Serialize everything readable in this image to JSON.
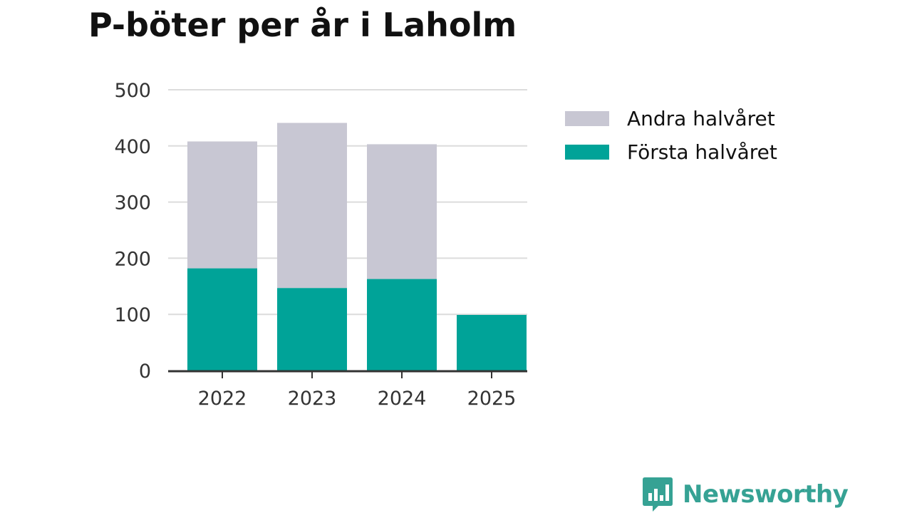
{
  "chart_data": {
    "type": "bar",
    "stacked": true,
    "title": "P-böter per år i Laholm",
    "categories": [
      "2022",
      "2023",
      "2024",
      "2025"
    ],
    "series": [
      {
        "name": "Första halvåret",
        "color": "#00a398",
        "values": [
          182,
          147,
          163,
          99
        ]
      },
      {
        "name": "Andra halvåret",
        "color": "#c8c7d3",
        "values": [
          226,
          294,
          240,
          0
        ]
      }
    ],
    "yticks": [
      "0",
      "100",
      "200",
      "300",
      "400",
      "500"
    ],
    "ylim": [
      0,
      500
    ],
    "xlabel": "",
    "ylabel": "",
    "grid": true,
    "legend": {
      "position": "right",
      "order": [
        "Andra halvåret",
        "Första halvåret"
      ]
    }
  },
  "brand": {
    "name": "Newsworthy",
    "color": "#36a294",
    "icon": "bar-chart-speech-bubble-icon"
  }
}
